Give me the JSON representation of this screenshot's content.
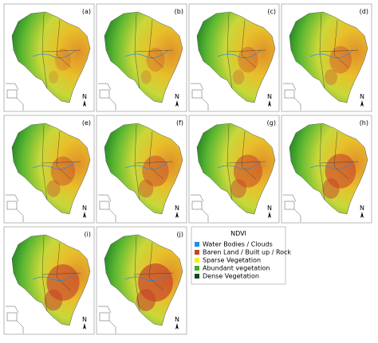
{
  "panels": [
    {
      "label": "(a)",
      "north": "N"
    },
    {
      "label": "(b)",
      "north": "N"
    },
    {
      "label": "(c)",
      "north": "N"
    },
    {
      "label": "(d)",
      "north": "N"
    },
    {
      "label": "(e)",
      "north": "N"
    },
    {
      "label": "(f)",
      "north": "N"
    },
    {
      "label": "(g)",
      "north": "N"
    },
    {
      "label": "(h)",
      "north": "N"
    },
    {
      "label": "(i)",
      "north": "N"
    },
    {
      "label": "(j)",
      "north": "N"
    }
  ],
  "legend": {
    "title": "NDVI",
    "items": [
      {
        "label": "Water Bodies / Clouds",
        "color": "#1f8fe8"
      },
      {
        "label": "Baren Land / Built up / Rock",
        "color": "#c8432c"
      },
      {
        "label": "Sparse Vegetation",
        "color": "#f2f21a"
      },
      {
        "label": "Abundant vegetation",
        "color": "#3fae2a"
      },
      {
        "label": "Dense Vegetation",
        "color": "#0b4d16"
      }
    ]
  }
}
